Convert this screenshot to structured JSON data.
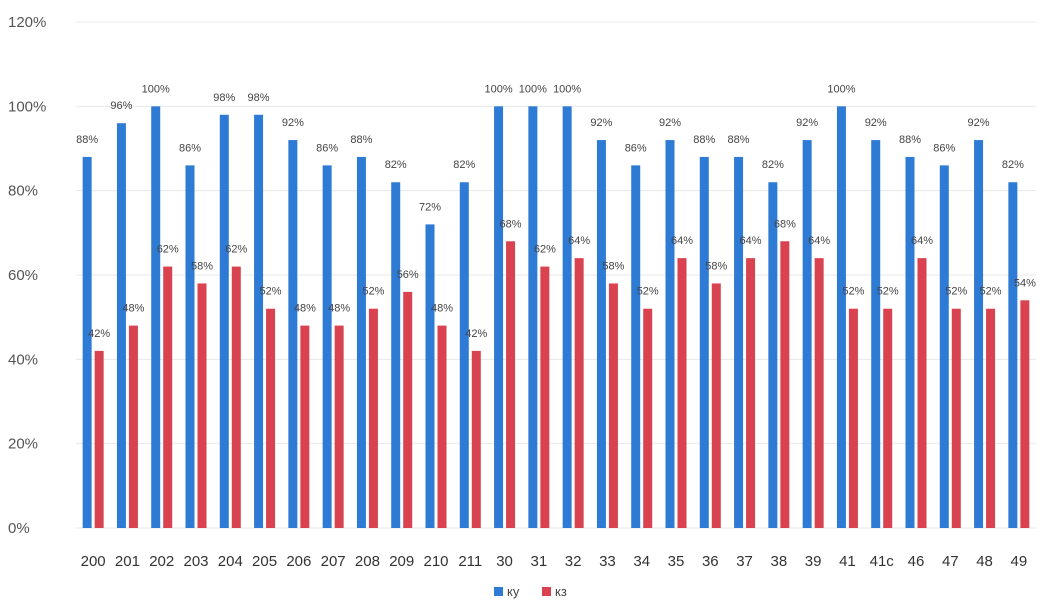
{
  "chart_data": {
    "type": "bar",
    "title": "",
    "xlabel": "",
    "ylabel": "",
    "ylim": [
      0,
      120
    ],
    "yticks": [
      0,
      20,
      40,
      60,
      80,
      100,
      120
    ],
    "ytick_labels": [
      "0%",
      "20%",
      "40%",
      "60%",
      "80%",
      "100%",
      "120%"
    ],
    "grid": true,
    "legend": "bottom-center",
    "categories": [
      "200",
      "201",
      "202",
      "203",
      "204",
      "205",
      "206",
      "207",
      "208",
      "209",
      "210",
      "211",
      "30",
      "31",
      "32",
      "33",
      "34",
      "35",
      "36",
      "37",
      "38",
      "39",
      "41",
      "41c",
      "46",
      "47",
      "48",
      "49"
    ],
    "series": [
      {
        "name": "ку",
        "color": "#2e7bd6",
        "values": [
          88,
          96,
          100,
          86,
          98,
          98,
          92,
          86,
          88,
          82,
          72,
          82,
          100,
          100,
          100,
          92,
          86,
          92,
          88,
          88,
          82,
          92,
          100,
          92,
          88,
          86,
          92,
          82
        ],
        "labels": [
          "88%",
          "96%",
          "100%",
          "86%",
          "98%",
          "98%",
          "92%",
          "86%",
          "88%",
          "82%",
          "72%",
          "82%",
          "100%",
          "100%",
          "100%",
          "92%",
          "86%",
          "92%",
          "88%",
          "88%",
          "82%",
          "92%",
          "100%",
          "92%",
          "88%",
          "86%",
          "92%",
          "82%"
        ]
      },
      {
        "name": "кз",
        "color": "#d9434f",
        "values": [
          42,
          48,
          62,
          58,
          62,
          52,
          48,
          48,
          52,
          56,
          48,
          42,
          68,
          62,
          64,
          58,
          52,
          64,
          58,
          64,
          68,
          64,
          52,
          52,
          64,
          52,
          52,
          54
        ],
        "labels": [
          "42%",
          "48%",
          "62%",
          "58%",
          "62%",
          "52%",
          "48%",
          "48%",
          "52%",
          "56%",
          "48%",
          "42%",
          "68%",
          "62%",
          "64%",
          "58%",
          "52%",
          "64%",
          "58%",
          "64%",
          "68%",
          "64%",
          "52%",
          "52%",
          "64%",
          "52%",
          "52%",
          "54%"
        ]
      }
    ]
  }
}
